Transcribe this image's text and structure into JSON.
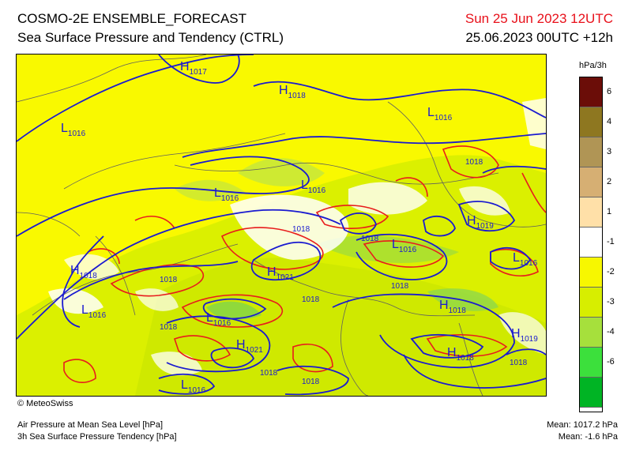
{
  "header": {
    "title": "COSMO-2E ENSEMBLE_FORECAST",
    "subtitle": "Sea Surface Pressure and Tendency (CTRL)",
    "valid_time": "Sun 25 Jun 2023 12UTC",
    "run_info": "25.06.2023 00UTC +12h"
  },
  "legend": {
    "unit": "hPa/3h",
    "colors": [
      "#6b0d08",
      "#8e7720",
      "#b09555",
      "#d6af73",
      "#ffe0a8",
      "#ffffff",
      "#f7f700",
      "#d7ee00",
      "#a6e03c",
      "#3ce03c",
      "#00b424"
    ],
    "ticks": [
      "6",
      "4",
      "3",
      "2",
      "1",
      "-1",
      "-2",
      "-3",
      "-4",
      "-6"
    ]
  },
  "map": {
    "pressure_centers": [
      {
        "type": "H",
        "value": "1017"
      },
      {
        "type": "H",
        "value": "1018"
      },
      {
        "type": "L",
        "value": "1016"
      },
      {
        "type": "L",
        "value": "1016"
      },
      {
        "type": "L",
        "value": "1016"
      },
      {
        "type": "L",
        "value": "1016"
      },
      {
        "type": "H",
        "value": "1019"
      },
      {
        "type": "L",
        "value": "1016"
      },
      {
        "type": "L",
        "value": "1016"
      },
      {
        "type": "H",
        "value": "1018"
      },
      {
        "type": "H",
        "value": "1021"
      },
      {
        "type": "L",
        "value": "1016"
      },
      {
        "type": "L",
        "value": "1016"
      },
      {
        "type": "H",
        "value": "1021"
      },
      {
        "type": "H",
        "value": "1018"
      },
      {
        "type": "H",
        "value": "1018"
      },
      {
        "type": "H",
        "value": "1019"
      },
      {
        "type": "L",
        "value": "1016"
      }
    ],
    "contour_labels": [
      "1018",
      "1018",
      "1018",
      "1018",
      "1018",
      "1018",
      "1018",
      "1018",
      "1018",
      "1018"
    ]
  },
  "footer": {
    "copyright": "© MeteoSwiss",
    "line1": "Air Pressure at Mean Sea Level [hPa]",
    "line2": "3h Sea Surface Pressure Tendency [hPa]",
    "mean_pressure": "Mean: 1017.2 hPa",
    "mean_tendency": "Mean:  -1.6 hPa"
  }
}
